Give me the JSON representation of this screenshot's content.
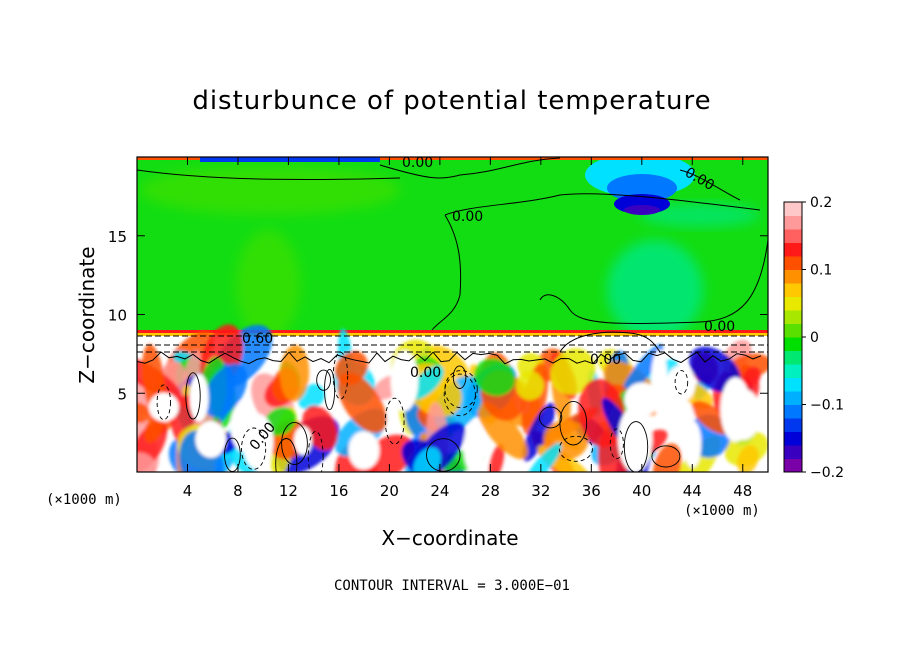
{
  "chart_data": {
    "type": "heatmap",
    "title": "disturbunce of potential temperature",
    "xlabel": "X−coordinate",
    "ylabel": "Z−coordinate",
    "x_unit_left": "(×1000 m)",
    "x_unit_right": "(×1000 m)",
    "x_ticks": [
      4,
      8,
      12,
      16,
      20,
      24,
      28,
      32,
      36,
      40,
      44,
      48
    ],
    "y_ticks": [
      5,
      10,
      15
    ],
    "xlim": [
      0,
      50
    ],
    "ylim": [
      0,
      20
    ],
    "colorbar": {
      "ticks": [
        "0.2",
        "0.1",
        "0",
        "−0.1",
        "−0.2"
      ],
      "range": [
        -0.2,
        0.2
      ],
      "colors": [
        "#7a00a8",
        "#3a00c0",
        "#0000d8",
        "#0038f0",
        "#0078ff",
        "#00b0ff",
        "#00e0ff",
        "#00f0c0",
        "#00e870",
        "#00e000",
        "#5ae000",
        "#a8e800",
        "#e8e800",
        "#ffc800",
        "#ff9000",
        "#ff5000",
        "#ff1a1a",
        "#ff6060",
        "#ff9a9a",
        "#ffc8c8"
      ]
    },
    "contour_labels": [
      "0.00",
      "0.00",
      "0.00",
      "0.00",
      "0.60",
      "0.00",
      "0.00",
      "0.00"
    ],
    "footer": "CONTOUR INTERVAL = 3.000E−01"
  }
}
